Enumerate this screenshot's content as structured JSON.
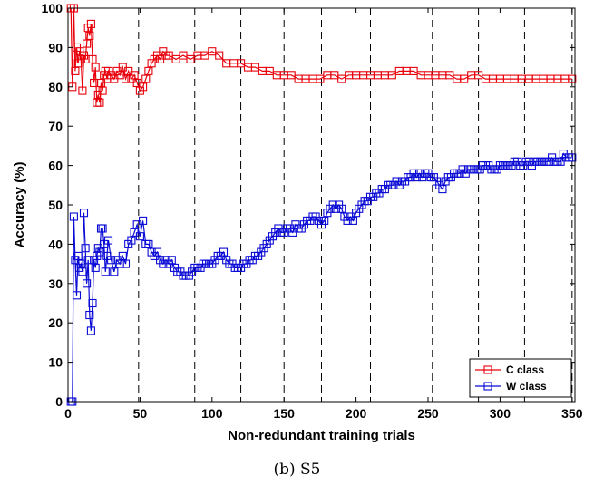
{
  "caption": "(b) S5",
  "chart_data": {
    "type": "line",
    "xlabel": "Non-redundant training trials",
    "ylabel": "Accuracy (%)",
    "xlim": [
      0,
      352
    ],
    "ylim": [
      0,
      100
    ],
    "xticks": [
      0,
      50,
      100,
      150,
      200,
      250,
      300,
      350
    ],
    "yticks": [
      0,
      10,
      20,
      30,
      40,
      50,
      60,
      70,
      80,
      90,
      100
    ],
    "grid": false,
    "legend": {
      "position": "bottom-right",
      "entries": [
        "C class",
        "W class"
      ]
    },
    "vlines": {
      "style": "dashed",
      "x": [
        49,
        88,
        120,
        150,
        176,
        210,
        253,
        285,
        317,
        350
      ]
    },
    "series": [
      {
        "name": "C class",
        "color": "#e8000b",
        "marker": "square",
        "points": [
          [
            2,
            100
          ],
          [
            3,
            80
          ],
          [
            4,
            100
          ],
          [
            5,
            84
          ],
          [
            6,
            90
          ],
          [
            7,
            86
          ],
          [
            8,
            89
          ],
          [
            9,
            87
          ],
          [
            10,
            79
          ],
          [
            11,
            88
          ],
          [
            12,
            87
          ],
          [
            13,
            91
          ],
          [
            14,
            95
          ],
          [
            15,
            93
          ],
          [
            16,
            96
          ],
          [
            17,
            87
          ],
          [
            18,
            81
          ],
          [
            19,
            85
          ],
          [
            20,
            76
          ],
          [
            21,
            78
          ],
          [
            22,
            76
          ],
          [
            23,
            81
          ],
          [
            24,
            79
          ],
          [
            25,
            83
          ],
          [
            26,
            84
          ],
          [
            27,
            82
          ],
          [
            28,
            84
          ],
          [
            30,
            83
          ],
          [
            32,
            82
          ],
          [
            34,
            84
          ],
          [
            36,
            83
          ],
          [
            38,
            85
          ],
          [
            40,
            82
          ],
          [
            42,
            84
          ],
          [
            44,
            82
          ],
          [
            46,
            83
          ],
          [
            48,
            81
          ],
          [
            50,
            79
          ],
          [
            52,
            80
          ],
          [
            54,
            82
          ],
          [
            56,
            84
          ],
          [
            58,
            86
          ],
          [
            60,
            87
          ],
          [
            62,
            88
          ],
          [
            64,
            87
          ],
          [
            66,
            89
          ],
          [
            68,
            88
          ],
          [
            70,
            88
          ],
          [
            75,
            87
          ],
          [
            80,
            88
          ],
          [
            85,
            87
          ],
          [
            90,
            88
          ],
          [
            95,
            88
          ],
          [
            100,
            89
          ],
          [
            105,
            88
          ],
          [
            110,
            86
          ],
          [
            115,
            86
          ],
          [
            120,
            86
          ],
          [
            125,
            85
          ],
          [
            130,
            85
          ],
          [
            135,
            84
          ],
          [
            140,
            84
          ],
          [
            145,
            83
          ],
          [
            150,
            83
          ],
          [
            155,
            83
          ],
          [
            160,
            82
          ],
          [
            165,
            82
          ],
          [
            170,
            82
          ],
          [
            175,
            82
          ],
          [
            180,
            83
          ],
          [
            185,
            83
          ],
          [
            190,
            82
          ],
          [
            195,
            83
          ],
          [
            200,
            83
          ],
          [
            205,
            83
          ],
          [
            210,
            83
          ],
          [
            215,
            83
          ],
          [
            220,
            83
          ],
          [
            225,
            83
          ],
          [
            230,
            84
          ],
          [
            235,
            84
          ],
          [
            240,
            84
          ],
          [
            245,
            83
          ],
          [
            250,
            83
          ],
          [
            255,
            83
          ],
          [
            260,
            83
          ],
          [
            265,
            83
          ],
          [
            270,
            82
          ],
          [
            275,
            82
          ],
          [
            280,
            83
          ],
          [
            285,
            83
          ],
          [
            290,
            82
          ],
          [
            295,
            82
          ],
          [
            300,
            82
          ],
          [
            305,
            82
          ],
          [
            310,
            82
          ],
          [
            315,
            82
          ],
          [
            320,
            82
          ],
          [
            325,
            82
          ],
          [
            330,
            82
          ],
          [
            335,
            82
          ],
          [
            340,
            82
          ],
          [
            345,
            82
          ],
          [
            350,
            82
          ]
        ]
      },
      {
        "name": "W class",
        "color": "#0a0ad6",
        "marker": "square",
        "points": [
          [
            2,
            0
          ],
          [
            3,
            0
          ],
          [
            4,
            47
          ],
          [
            5,
            36
          ],
          [
            6,
            27
          ],
          [
            7,
            37
          ],
          [
            8,
            34
          ],
          [
            9,
            35
          ],
          [
            10,
            33
          ],
          [
            11,
            48
          ],
          [
            12,
            39
          ],
          [
            13,
            30
          ],
          [
            14,
            36
          ],
          [
            15,
            22
          ],
          [
            16,
            18
          ],
          [
            17,
            25
          ],
          [
            18,
            36
          ],
          [
            19,
            34
          ],
          [
            20,
            37
          ],
          [
            21,
            39
          ],
          [
            22,
            38
          ],
          [
            23,
            44
          ],
          [
            24,
            44
          ],
          [
            25,
            40
          ],
          [
            26,
            33
          ],
          [
            27,
            37
          ],
          [
            28,
            41
          ],
          [
            30,
            36
          ],
          [
            32,
            33
          ],
          [
            34,
            36
          ],
          [
            36,
            35
          ],
          [
            38,
            37
          ],
          [
            40,
            35
          ],
          [
            42,
            40
          ],
          [
            44,
            41
          ],
          [
            46,
            43
          ],
          [
            48,
            45
          ],
          [
            50,
            42
          ],
          [
            52,
            46
          ],
          [
            54,
            40
          ],
          [
            56,
            40
          ],
          [
            58,
            38
          ],
          [
            60,
            37
          ],
          [
            62,
            38
          ],
          [
            64,
            36
          ],
          [
            66,
            35
          ],
          [
            68,
            36
          ],
          [
            70,
            35
          ],
          [
            72,
            36
          ],
          [
            74,
            34
          ],
          [
            76,
            33
          ],
          [
            78,
            33
          ],
          [
            80,
            32
          ],
          [
            82,
            32
          ],
          [
            84,
            32
          ],
          [
            86,
            33
          ],
          [
            88,
            34
          ],
          [
            90,
            34
          ],
          [
            92,
            34
          ],
          [
            94,
            35
          ],
          [
            96,
            35
          ],
          [
            98,
            35
          ],
          [
            100,
            35
          ],
          [
            102,
            36
          ],
          [
            104,
            37
          ],
          [
            106,
            37
          ],
          [
            108,
            38
          ],
          [
            110,
            36
          ],
          [
            112,
            35
          ],
          [
            114,
            35
          ],
          [
            116,
            34
          ],
          [
            118,
            34
          ],
          [
            120,
            34
          ],
          [
            122,
            35
          ],
          [
            124,
            35
          ],
          [
            126,
            36
          ],
          [
            128,
            36
          ],
          [
            130,
            37
          ],
          [
            132,
            37
          ],
          [
            134,
            38
          ],
          [
            136,
            39
          ],
          [
            138,
            40
          ],
          [
            140,
            41
          ],
          [
            142,
            42
          ],
          [
            144,
            43
          ],
          [
            146,
            44
          ],
          [
            148,
            43
          ],
          [
            150,
            43
          ],
          [
            152,
            44
          ],
          [
            154,
            44
          ],
          [
            156,
            43
          ],
          [
            158,
            45
          ],
          [
            160,
            44
          ],
          [
            162,
            44
          ],
          [
            164,
            45
          ],
          [
            166,
            46
          ],
          [
            168,
            46
          ],
          [
            170,
            47
          ],
          [
            172,
            47
          ],
          [
            174,
            46
          ],
          [
            176,
            45
          ],
          [
            178,
            46
          ],
          [
            180,
            48
          ],
          [
            182,
            49
          ],
          [
            184,
            50
          ],
          [
            186,
            49
          ],
          [
            188,
            50
          ],
          [
            190,
            49
          ],
          [
            192,
            47
          ],
          [
            194,
            46
          ],
          [
            196,
            47
          ],
          [
            198,
            46
          ],
          [
            200,
            48
          ],
          [
            202,
            49
          ],
          [
            204,
            50
          ],
          [
            206,
            51
          ],
          [
            208,
            51
          ],
          [
            210,
            52
          ],
          [
            212,
            52
          ],
          [
            214,
            53
          ],
          [
            216,
            53
          ],
          [
            218,
            54
          ],
          [
            220,
            54
          ],
          [
            222,
            55
          ],
          [
            224,
            55
          ],
          [
            226,
            55
          ],
          [
            228,
            56
          ],
          [
            230,
            55
          ],
          [
            232,
            56
          ],
          [
            234,
            56
          ],
          [
            236,
            57
          ],
          [
            238,
            57
          ],
          [
            240,
            58
          ],
          [
            242,
            57
          ],
          [
            244,
            58
          ],
          [
            246,
            57
          ],
          [
            248,
            58
          ],
          [
            250,
            58
          ],
          [
            252,
            57
          ],
          [
            254,
            57
          ],
          [
            256,
            56
          ],
          [
            258,
            55
          ],
          [
            260,
            54
          ],
          [
            262,
            56
          ],
          [
            264,
            57
          ],
          [
            266,
            57
          ],
          [
            268,
            58
          ],
          [
            270,
            58
          ],
          [
            272,
            58
          ],
          [
            274,
            59
          ],
          [
            276,
            58
          ],
          [
            278,
            59
          ],
          [
            280,
            59
          ],
          [
            282,
            59
          ],
          [
            284,
            59
          ],
          [
            286,
            59
          ],
          [
            288,
            60
          ],
          [
            290,
            60
          ],
          [
            292,
            60
          ],
          [
            294,
            59
          ],
          [
            296,
            59
          ],
          [
            298,
            59
          ],
          [
            300,
            60
          ],
          [
            302,
            60
          ],
          [
            304,
            60
          ],
          [
            306,
            60
          ],
          [
            308,
            60
          ],
          [
            310,
            61
          ],
          [
            312,
            61
          ],
          [
            314,
            60
          ],
          [
            316,
            60
          ],
          [
            318,
            61
          ],
          [
            320,
            61
          ],
          [
            322,
            60
          ],
          [
            324,
            61
          ],
          [
            326,
            61
          ],
          [
            328,
            61
          ],
          [
            330,
            61
          ],
          [
            332,
            61
          ],
          [
            334,
            61
          ],
          [
            336,
            62
          ],
          [
            338,
            61
          ],
          [
            340,
            61
          ],
          [
            342,
            61
          ],
          [
            344,
            63
          ],
          [
            346,
            62
          ],
          [
            348,
            62
          ],
          [
            350,
            62
          ]
        ]
      }
    ]
  }
}
